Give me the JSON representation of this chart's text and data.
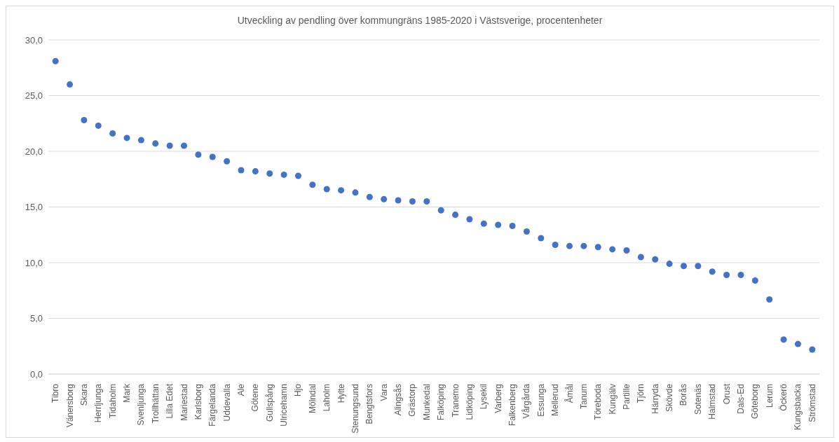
{
  "chart_data": {
    "type": "scatter",
    "title": "Utveckling av pendling över kommungräns 1985-2020 i Västsverige, procentenheter",
    "categories": [
      "Tibro",
      "Vänersborg",
      "Skara",
      "Herrljunga",
      "Tidaholm",
      "Mark",
      "Svenljunga",
      "Trollhättan",
      "Lilla Edet",
      "Mariestad",
      "Karlsborg",
      "Färgelanda",
      "Uddevalla",
      "Ale",
      "Götene",
      "Gullspång",
      "Ulricehamn",
      "Hjo",
      "Mölndal",
      "Laholm",
      "Hylte",
      "Stenungsund",
      "Bengtsfors",
      "Vara",
      "Alingsås",
      "Grästorp",
      "Munkedal",
      "Falköping",
      "Tranemo",
      "Lidköping",
      "Lysekil",
      "Varberg",
      "Falkenberg",
      "Vårgårda",
      "Essunga",
      "Mellerud",
      "Åmål",
      "Tanum",
      "Töreboda",
      "Kungälv",
      "Partille",
      "Tjörn",
      "Härryda",
      "Skövde",
      "Borås",
      "Sotenäs",
      "Halmstad",
      "Orust",
      "Dals-Ed",
      "Göteborg",
      "Lerum",
      "Öckerö",
      "Kungsbacka",
      "Strömstad"
    ],
    "values": [
      28.1,
      26.0,
      22.8,
      22.3,
      21.6,
      21.2,
      21.0,
      20.7,
      20.5,
      20.5,
      19.7,
      19.5,
      19.1,
      18.3,
      18.2,
      18.0,
      17.9,
      17.8,
      17.0,
      16.6,
      16.5,
      16.3,
      15.9,
      15.7,
      15.6,
      15.5,
      15.5,
      14.7,
      14.3,
      13.9,
      13.5,
      13.4,
      13.3,
      12.8,
      12.2,
      11.6,
      11.5,
      11.5,
      11.4,
      11.2,
      11.1,
      10.5,
      10.3,
      9.9,
      9.7,
      9.7,
      9.2,
      8.9,
      8.9,
      8.4,
      6.7,
      3.1,
      2.7,
      2.2
    ],
    "color": "#4472c4",
    "ylim": [
      0,
      30
    ],
    "yticks": [
      {
        "value": 0,
        "label": "0,0"
      },
      {
        "value": 5,
        "label": "5,0"
      },
      {
        "value": 10,
        "label": "10,0"
      },
      {
        "value": 15,
        "label": "15,0"
      },
      {
        "value": 20,
        "label": "20,0"
      },
      {
        "value": 25,
        "label": "25,0"
      },
      {
        "value": 30,
        "label": "30,0"
      }
    ],
    "grid": "y",
    "marker": "circle"
  }
}
